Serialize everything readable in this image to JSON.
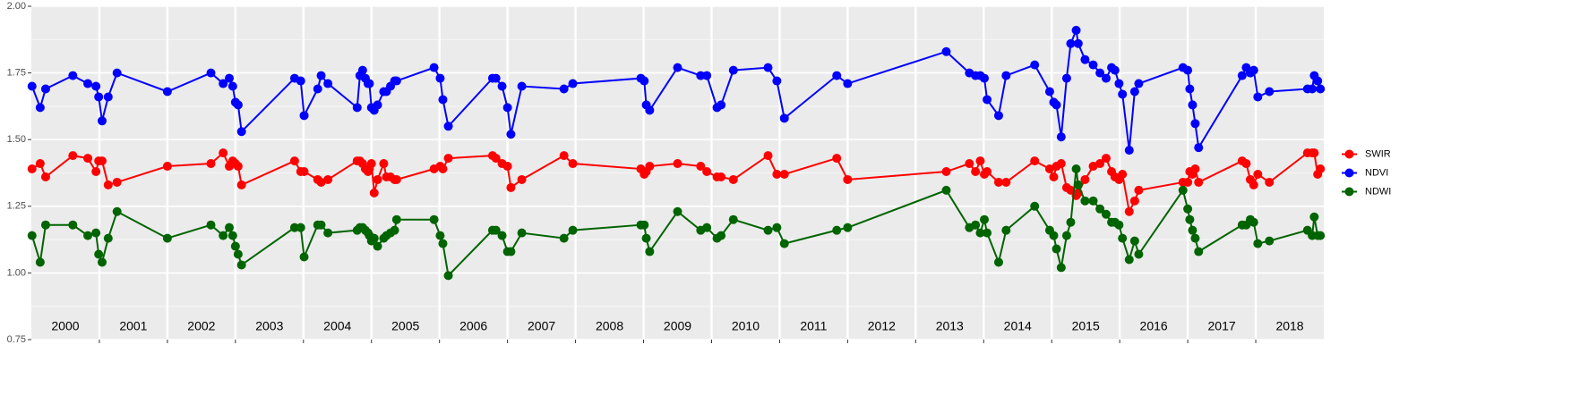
{
  "chart_data": {
    "type": "line",
    "x": [
      2000.01,
      2000.13,
      2000.21,
      2000.61,
      2000.83,
      2000.95,
      2000.99,
      2001.04,
      2001.13,
      2001.26,
      2002.0,
      2002.64,
      2002.82,
      2002.91,
      2002.96,
      2003.0,
      2003.04,
      2003.09,
      2003.87,
      2003.96,
      2004.01,
      2004.21,
      2004.26,
      2004.36,
      2004.79,
      2004.83,
      2004.87,
      2004.91,
      2004.95,
      2004.97,
      2005.0,
      2005.04,
      2005.09,
      2005.18,
      2005.22,
      2005.28,
      2005.34,
      2005.37,
      2005.92,
      2006.01,
      2006.05,
      2006.13,
      2006.78,
      2006.83,
      2006.92,
      2007.0,
      2007.05,
      2007.21,
      2007.83,
      2007.96,
      2008.96,
      2009.01,
      2009.04,
      2009.09,
      2009.5,
      2009.84,
      2009.93,
      2010.08,
      2010.14,
      2010.32,
      2010.83,
      2010.96,
      2011.07,
      2011.84,
      2012.0,
      2013.45,
      2013.79,
      2013.88,
      2013.95,
      2014.01,
      2014.05,
      2014.22,
      2014.33,
      2014.75,
      2014.97,
      2015.03,
      2015.07,
      2015.14,
      2015.22,
      2015.28,
      2015.36,
      2015.39,
      2015.49,
      2015.61,
      2015.71,
      2015.8,
      2015.88,
      2015.93,
      2015.99,
      2016.04,
      2016.14,
      2016.22,
      2016.28,
      2016.93,
      2017.0,
      2017.03,
      2017.07,
      2017.11,
      2017.16,
      2017.8,
      2017.86,
      2017.92,
      2017.97,
      2018.03,
      2018.2,
      2018.76,
      2018.83,
      2018.86,
      2018.91,
      2018.95
    ],
    "series": [
      {
        "name": "SWIR",
        "color": "#ff0000",
        "values": [
          1.39,
          1.41,
          1.36,
          1.44,
          1.43,
          1.38,
          1.42,
          1.42,
          1.33,
          1.34,
          1.4,
          1.41,
          1.45,
          1.4,
          1.42,
          1.41,
          1.4,
          1.33,
          1.42,
          1.38,
          1.38,
          1.35,
          1.34,
          1.35,
          1.42,
          1.42,
          1.41,
          1.39,
          1.38,
          1.39,
          1.41,
          1.3,
          1.35,
          1.41,
          1.36,
          1.36,
          1.35,
          1.35,
          1.39,
          1.4,
          1.39,
          1.43,
          1.44,
          1.43,
          1.41,
          1.4,
          1.32,
          1.35,
          1.44,
          1.41,
          1.39,
          1.37,
          1.38,
          1.4,
          1.41,
          1.4,
          1.38,
          1.36,
          1.36,
          1.35,
          1.44,
          1.37,
          1.37,
          1.43,
          1.35,
          1.38,
          1.41,
          1.38,
          1.42,
          1.37,
          1.38,
          1.34,
          1.34,
          1.42,
          1.39,
          1.36,
          1.4,
          1.41,
          1.32,
          1.31,
          1.29,
          1.3,
          1.35,
          1.4,
          1.41,
          1.43,
          1.38,
          1.36,
          1.35,
          1.37,
          1.23,
          1.27,
          1.31,
          1.34,
          1.34,
          1.38,
          1.37,
          1.39,
          1.34,
          1.42,
          1.41,
          1.35,
          1.33,
          1.37,
          1.34,
          1.45,
          1.45,
          1.45,
          1.37,
          1.39
        ]
      },
      {
        "name": "NDVI",
        "color": "#0000ff",
        "values": [
          1.7,
          1.62,
          1.69,
          1.74,
          1.71,
          1.7,
          1.66,
          1.57,
          1.66,
          1.75,
          1.68,
          1.75,
          1.71,
          1.73,
          1.7,
          1.64,
          1.63,
          1.53,
          1.73,
          1.72,
          1.59,
          1.69,
          1.74,
          1.71,
          1.62,
          1.74,
          1.76,
          1.73,
          1.71,
          1.71,
          1.62,
          1.61,
          1.63,
          1.68,
          1.68,
          1.7,
          1.72,
          1.72,
          1.77,
          1.73,
          1.65,
          1.55,
          1.73,
          1.73,
          1.7,
          1.62,
          1.52,
          1.7,
          1.69,
          1.71,
          1.73,
          1.72,
          1.63,
          1.61,
          1.77,
          1.74,
          1.74,
          1.62,
          1.63,
          1.76,
          1.77,
          1.72,
          1.58,
          1.74,
          1.71,
          1.83,
          1.75,
          1.74,
          1.74,
          1.73,
          1.65,
          1.59,
          1.74,
          1.78,
          1.68,
          1.64,
          1.63,
          1.51,
          1.73,
          1.86,
          1.91,
          1.86,
          1.8,
          1.78,
          1.75,
          1.73,
          1.77,
          1.76,
          1.71,
          1.67,
          1.46,
          1.68,
          1.71,
          1.77,
          1.76,
          1.69,
          1.63,
          1.56,
          1.47,
          1.74,
          1.77,
          1.75,
          1.76,
          1.66,
          1.68,
          1.69,
          1.69,
          1.74,
          1.72,
          1.69
        ]
      },
      {
        "name": "NDWI",
        "color": "#006400",
        "values": [
          1.14,
          1.04,
          1.18,
          1.18,
          1.14,
          1.15,
          1.07,
          1.04,
          1.13,
          1.23,
          1.13,
          1.18,
          1.14,
          1.17,
          1.14,
          1.1,
          1.07,
          1.03,
          1.17,
          1.17,
          1.06,
          1.18,
          1.18,
          1.15,
          1.16,
          1.17,
          1.17,
          1.16,
          1.15,
          1.14,
          1.12,
          1.13,
          1.1,
          1.13,
          1.14,
          1.15,
          1.16,
          1.2,
          1.2,
          1.14,
          1.11,
          0.99,
          1.16,
          1.16,
          1.14,
          1.08,
          1.08,
          1.15,
          1.13,
          1.16,
          1.18,
          1.18,
          1.13,
          1.08,
          1.23,
          1.16,
          1.17,
          1.13,
          1.14,
          1.2,
          1.16,
          1.17,
          1.11,
          1.16,
          1.17,
          1.31,
          1.17,
          1.18,
          1.15,
          1.2,
          1.15,
          1.04,
          1.16,
          1.25,
          1.16,
          1.14,
          1.09,
          1.02,
          1.14,
          1.19,
          1.39,
          1.33,
          1.27,
          1.27,
          1.24,
          1.22,
          1.19,
          1.19,
          1.18,
          1.13,
          1.05,
          1.12,
          1.07,
          1.31,
          1.24,
          1.2,
          1.16,
          1.13,
          1.08,
          1.18,
          1.18,
          1.2,
          1.19,
          1.11,
          1.12,
          1.16,
          1.14,
          1.21,
          1.14,
          1.14
        ]
      }
    ],
    "xlim": [
      2000,
      2019
    ],
    "xgrid": [
      2001,
      2002,
      2003,
      2004,
      2005,
      2006,
      2007,
      2008,
      2009,
      2010,
      2011,
      2012,
      2013,
      2014,
      2015,
      2016,
      2017,
      2018
    ],
    "year_labels": [
      "2000",
      "2001",
      "2002",
      "2003",
      "2004",
      "2005",
      "2006",
      "2007",
      "2008",
      "2009",
      "2010",
      "2011",
      "2012",
      "2013",
      "2014",
      "2015",
      "2016",
      "2017",
      "2018"
    ],
    "ylim": [
      0.75,
      2.0
    ],
    "yticks": [
      {
        "value": 0.75,
        "label": "0.75"
      },
      {
        "value": 1.0,
        "label": "1.00"
      },
      {
        "value": 1.25,
        "label": "1.25"
      },
      {
        "value": 1.5,
        "label": "1.50"
      },
      {
        "value": 1.75,
        "label": "1.75"
      },
      {
        "value": 2.0,
        "label": "2.00"
      }
    ],
    "grid": true,
    "legend": "right"
  }
}
